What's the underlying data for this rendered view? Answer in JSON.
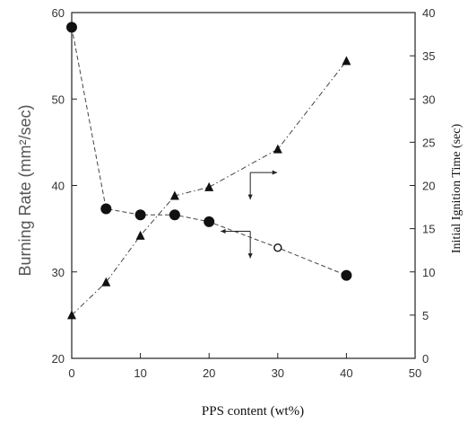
{
  "chart_data": {
    "type": "line",
    "xlabel": "PPS content (wt%)",
    "ylabel": "Burning Rate (mm²/sec)",
    "y2label": "Initial Ignition Time (sec)",
    "xlim": [
      0,
      50
    ],
    "ylim": [
      20,
      60
    ],
    "y2lim": [
      0,
      40
    ],
    "x_ticks": [
      0,
      10,
      20,
      30,
      40,
      50
    ],
    "y_ticks": [
      20,
      30,
      40,
      50,
      60
    ],
    "y2_ticks": [
      0,
      5,
      10,
      15,
      20,
      25,
      30,
      35,
      40
    ],
    "grid": false,
    "series": [
      {
        "axis": "left",
        "marker": "circle",
        "x": [
          0,
          5,
          10,
          15,
          20,
          30,
          40
        ],
        "y": [
          58.3,
          37.3,
          36.6,
          36.6,
          35.8,
          32.8,
          29.6
        ]
      },
      {
        "axis": "right",
        "marker": "triangle",
        "x": [
          0,
          5,
          10,
          15,
          20,
          30,
          40
        ],
        "y": [
          5.0,
          8.8,
          14.2,
          18.8,
          19.8,
          24.2,
          34.4
        ]
      }
    ],
    "annotations": [
      {
        "type": "axis-indicator",
        "series": "right",
        "direction": "right"
      },
      {
        "type": "axis-indicator",
        "series": "left",
        "direction": "left"
      }
    ]
  }
}
